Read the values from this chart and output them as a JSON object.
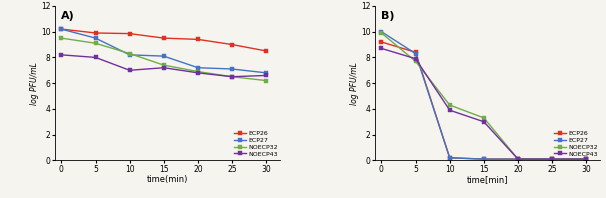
{
  "time": [
    0,
    5,
    10,
    15,
    20,
    25,
    30
  ],
  "panel_A": {
    "label": "A)",
    "ECP26": [
      10.2,
      9.9,
      9.85,
      9.5,
      9.4,
      9.0,
      8.5
    ],
    "ECP27": [
      10.2,
      9.5,
      8.2,
      8.1,
      7.2,
      7.1,
      6.8
    ],
    "NOECP32": [
      9.5,
      9.1,
      8.3,
      7.4,
      6.9,
      6.5,
      6.2
    ],
    "NOECP43": [
      8.2,
      8.0,
      7.0,
      7.2,
      6.8,
      6.5,
      6.6
    ]
  },
  "panel_B": {
    "label": "B)",
    "ECP26": [
      9.2,
      8.4,
      0.2,
      0.1,
      0.1,
      0.1,
      0.1
    ],
    "ECP27": [
      10.0,
      8.3,
      0.2,
      0.1,
      0.1,
      0.1,
      0.1
    ],
    "NOECP32": [
      9.9,
      7.7,
      4.3,
      3.3,
      0.1,
      0.1,
      0.1
    ],
    "NOECP43": [
      8.7,
      7.9,
      3.9,
      3.0,
      0.1,
      0.1,
      0.1
    ]
  },
  "colors": {
    "ECP26": "#e03020",
    "ECP27": "#4472c4",
    "NOECP32": "#70ad47",
    "NOECP43": "#7030a0"
  },
  "legend_labels": {
    "ECP26": "ECP26",
    "ECP27": "ECP27",
    "NOECP32": "NOECP32",
    "NOECP43": "NOECP43"
  },
  "ylabel": "log PFU/mL",
  "xlabel_A": "time(min)",
  "xlabel_B": "time[min]",
  "ylim": [
    0,
    12
  ],
  "yticks": [
    0,
    2,
    4,
    6,
    8,
    10,
    12
  ],
  "xticks": [
    0,
    5,
    10,
    15,
    20,
    25,
    30
  ],
  "legend_order": [
    "ECP26",
    "ECP27",
    "NOECP32",
    "NOECP43"
  ],
  "background_color": "#f5f4ef",
  "markersize": 3.5,
  "linewidth": 1.0
}
